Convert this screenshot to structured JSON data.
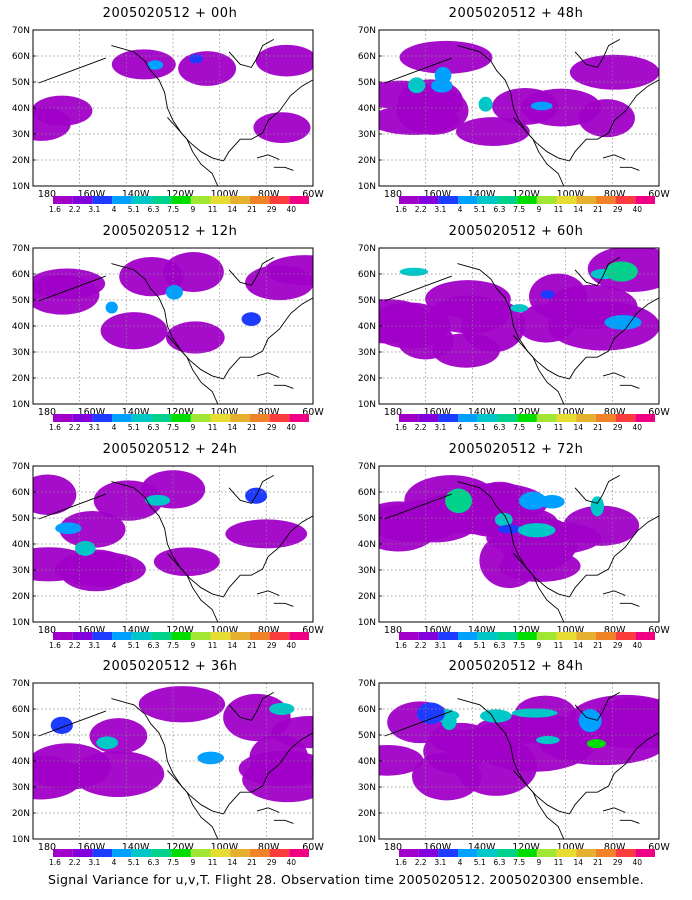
{
  "panels": [
    {
      "title": "2005020512 + 00h",
      "level": 0.2
    },
    {
      "title": "2005020512 + 48h",
      "level": 0.6
    },
    {
      "title": "2005020512 + 12h",
      "level": 0.35
    },
    {
      "title": "2005020512 + 60h",
      "level": 0.75
    },
    {
      "title": "2005020512 + 24h",
      "level": 0.45
    },
    {
      "title": "2005020512 + 72h",
      "level": 0.85
    },
    {
      "title": "2005020512 + 36h",
      "level": 0.55
    },
    {
      "title": "2005020512 + 84h",
      "level": 0.95
    }
  ],
  "axes": {
    "lat_labels": [
      "10N",
      "20N",
      "30N",
      "40N",
      "50N",
      "60N",
      "70N"
    ],
    "lon_labels": [
      "180",
      "160W",
      "140W",
      "120W",
      "100W",
      "80W",
      "60W"
    ]
  },
  "colorbar": {
    "labels": [
      "1.6",
      "2.2",
      "3.1",
      "4",
      "5.1",
      "6.3",
      "7.5",
      "9",
      "11",
      "14",
      "21",
      "29",
      "40"
    ],
    "colors": [
      "#a000c8",
      "#8200dc",
      "#1e3cff",
      "#00a0ff",
      "#00c8c8",
      "#00d28c",
      "#00dc00",
      "#a0e632",
      "#e6dc32",
      "#e6af2d",
      "#f08228",
      "#fa3c3c",
      "#f00082"
    ]
  },
  "footer": "Signal Variance for u,v,T. Flight 28. Observation time 2005020512. 2005020300 ensemble."
}
